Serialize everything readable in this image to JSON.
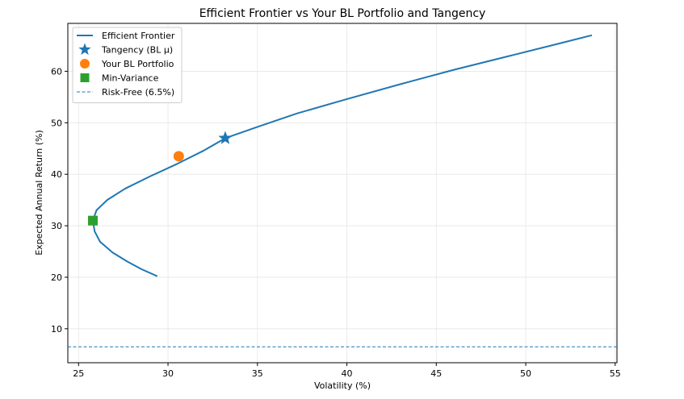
{
  "chart_data": {
    "type": "line",
    "title": "Efficient Frontier vs Your BL Portfolio and Tangency",
    "xlabel": "Volatility (%)",
    "ylabel": "Expected Annual Return (%)",
    "xlim": [
      24.4,
      55.1
    ],
    "ylim": [
      3.4,
      69.3
    ],
    "xticks": [
      25,
      30,
      35,
      40,
      45,
      50,
      55
    ],
    "yticks": [
      10,
      20,
      30,
      40,
      50,
      60
    ],
    "grid": true,
    "legend_position": "top-left",
    "series": [
      {
        "name": "Efficient Frontier",
        "kind": "line",
        "color": "#1f77b4",
        "x": [
          29.4,
          28.5,
          27.7,
          26.9,
          26.2,
          25.9,
          25.8,
          26.0,
          26.6,
          27.6,
          29.0,
          30.5,
          32.0,
          33.2,
          35.0,
          37.2,
          40.0,
          43.0,
          46.0,
          49.0,
          52.0,
          53.7
        ],
        "y": [
          20.2,
          21.6,
          23.1,
          24.8,
          26.9,
          28.9,
          31.0,
          33.0,
          35.0,
          37.2,
          39.6,
          42.0,
          44.6,
          47.0,
          49.2,
          51.8,
          54.6,
          57.5,
          60.3,
          62.9,
          65.5,
          67.0
        ]
      },
      {
        "name": "Tangency (BL μ)",
        "kind": "star",
        "color": "#1f77b4",
        "x": 33.2,
        "y": 47.0
      },
      {
        "name": "Your BL Portfolio",
        "kind": "circle",
        "color": "#ff7f0e",
        "x": 30.6,
        "y": 43.5
      },
      {
        "name": "Min-Variance",
        "kind": "square",
        "color": "#2ca02c",
        "x": 25.8,
        "y": 31.0
      },
      {
        "name": "Risk-Free (6.5%)",
        "kind": "hline",
        "color": "#1f77b4",
        "y": 6.5
      }
    ]
  }
}
